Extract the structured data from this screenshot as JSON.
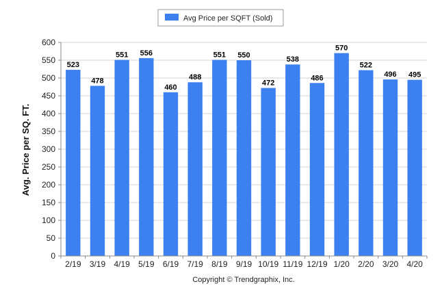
{
  "chart_data": {
    "type": "bar",
    "categories": [
      "2/19",
      "3/19",
      "4/19",
      "5/19",
      "6/19",
      "7/19",
      "8/19",
      "9/19",
      "10/19",
      "11/19",
      "12/19",
      "1/20",
      "2/20",
      "3/20",
      "4/20"
    ],
    "series": [
      {
        "name": "Avg Price per SQFT (Sold)",
        "values": [
          523,
          478,
          551,
          556,
          460,
          488,
          551,
          550,
          472,
          538,
          486,
          570,
          522,
          496,
          495
        ],
        "color": "#3d80f0"
      }
    ],
    "ylabel": "Avg. Price per SQ. FT.",
    "xlabel": "",
    "ylim": [
      0,
      600
    ],
    "yticks": [
      0,
      50,
      100,
      150,
      200,
      250,
      300,
      350,
      400,
      450,
      500,
      550,
      600
    ],
    "grid": true,
    "legend": "top-center",
    "footer": "Copyright © Trendgraphix, Inc."
  }
}
